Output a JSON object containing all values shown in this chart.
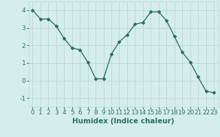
{
  "x": [
    0,
    1,
    2,
    3,
    4,
    5,
    6,
    7,
    8,
    9,
    10,
    11,
    12,
    13,
    14,
    15,
    16,
    17,
    18,
    19,
    20,
    21,
    22,
    23
  ],
  "y": [
    4.0,
    3.5,
    3.5,
    3.1,
    2.4,
    1.85,
    1.75,
    1.05,
    0.1,
    0.1,
    1.5,
    2.2,
    2.6,
    3.2,
    3.3,
    3.9,
    3.9,
    3.4,
    2.5,
    1.6,
    1.05,
    0.2,
    -0.6,
    -0.7
  ],
  "line_color": "#2a6e62",
  "marker": "D",
  "marker_size": 2.5,
  "bg_color": "#d5eeea",
  "grid_color": "#b8d8d4",
  "xlabel": "Humidex (Indice chaleur)",
  "ylim": [
    -1.5,
    4.5
  ],
  "xlim": [
    -0.5,
    23.5
  ],
  "yticks": [
    -1,
    0,
    1,
    2,
    3,
    4
  ],
  "xticks": [
    0,
    1,
    2,
    3,
    4,
    5,
    6,
    7,
    8,
    9,
    10,
    11,
    12,
    13,
    14,
    15,
    16,
    17,
    18,
    19,
    20,
    21,
    22,
    23
  ],
  "xlabel_fontsize": 7.5,
  "tick_fontsize": 6.5,
  "line_width": 1.0
}
